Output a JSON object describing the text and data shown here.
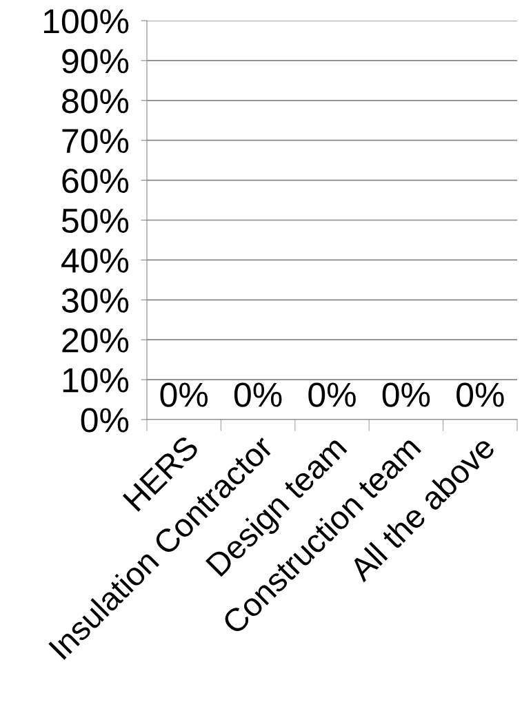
{
  "chart_data": {
    "type": "bar",
    "categories": [
      "HERS",
      "Insulation Contractor",
      "Design team",
      "Construction team",
      "All the above"
    ],
    "values": [
      0,
      0,
      0,
      0,
      0
    ],
    "value_labels": [
      "0%",
      "0%",
      "0%",
      "0%",
      "0%"
    ],
    "ylim": [
      0,
      100
    ],
    "yticks": [
      {
        "value": 0,
        "label": "0%"
      },
      {
        "value": 10,
        "label": "10%"
      },
      {
        "value": 20,
        "label": "20%"
      },
      {
        "value": 30,
        "label": "30%"
      },
      {
        "value": 40,
        "label": "40%"
      },
      {
        "value": 50,
        "label": "50%"
      },
      {
        "value": 60,
        "label": "60%"
      },
      {
        "value": 70,
        "label": "70%"
      },
      {
        "value": 80,
        "label": "80%"
      },
      {
        "value": 90,
        "label": "90%"
      },
      {
        "value": 100,
        "label": "100%"
      }
    ],
    "grid": "y",
    "legend": false
  }
}
